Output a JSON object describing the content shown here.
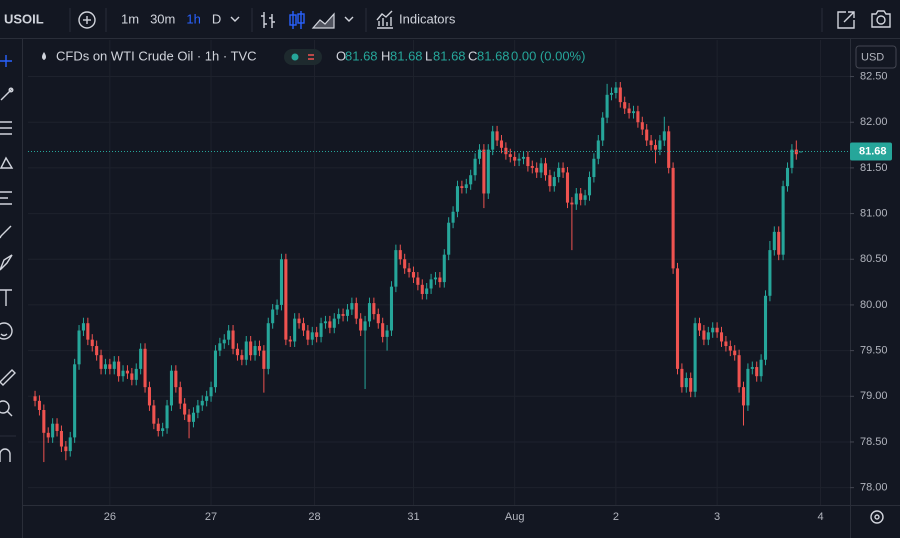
{
  "ui": {
    "symbol": "USOIL",
    "intervals": [
      "1m",
      "30m",
      "1h",
      "D"
    ],
    "active_interval": 2,
    "indicators": "Indicators",
    "legend_title": "CFDs on WTI Crude Oil · 1h · TVC",
    "ohlc": {
      "o_label": "O",
      "open": 81.68,
      "h_label": "H",
      "high": 81.68,
      "l_label": "L",
      "low": 81.68,
      "c_label": "C",
      "close": 81.68,
      "change": "0.00 (0.00%)"
    },
    "currency": "USD"
  },
  "chart_data": {
    "type": "candlestick",
    "up_color": "#26a69a",
    "down_color": "#ef5350",
    "grid": true,
    "last_price": 81.68,
    "xlim": [
      -1.6,
      185.2
    ],
    "xticks": [
      {
        "value": 17,
        "label": "26"
      },
      {
        "value": 40,
        "label": "27"
      },
      {
        "value": 63.5,
        "label": "28"
      },
      {
        "value": 86,
        "label": "31"
      },
      {
        "value": 109,
        "label": "Aug"
      },
      {
        "value": 132,
        "label": "2"
      },
      {
        "value": 155,
        "label": "3"
      },
      {
        "value": 178.5,
        "label": "4"
      }
    ],
    "ylim": [
      77.81,
      82.9
    ],
    "yticks": [
      {
        "value": 78,
        "label": "78.00"
      },
      {
        "value": 78.5,
        "label": "78.50"
      },
      {
        "value": 79,
        "label": "79.00"
      },
      {
        "value": 79.5,
        "label": "79.50"
      },
      {
        "value": 80,
        "label": "80.00"
      },
      {
        "value": 80.5,
        "label": "80.50"
      },
      {
        "value": 81,
        "label": "81.00"
      },
      {
        "value": 81.5,
        "label": "81.50"
      },
      {
        "value": 82,
        "label": "82.00"
      },
      {
        "value": 82.5,
        "label": "82.50"
      }
    ],
    "open": [
      79.0,
      78.95,
      78.85,
      78.6,
      78.55,
      78.7,
      78.62,
      78.45,
      78.4,
      78.55,
      79.35,
      79.72,
      79.8,
      79.62,
      79.55,
      79.45,
      79.3,
      79.35,
      79.3,
      79.38,
      79.22,
      79.28,
      79.25,
      79.18,
      79.3,
      79.52,
      79.1,
      78.9,
      78.7,
      78.62,
      78.65,
      78.9,
      79.28,
      79.1,
      78.92,
      78.8,
      78.72,
      78.82,
      78.9,
      78.95,
      79.0,
      79.1,
      79.5,
      79.58,
      79.62,
      79.72,
      79.52,
      79.45,
      79.4,
      79.6,
      79.45,
      79.55,
      79.5,
      79.3,
      79.8,
      79.95,
      80.0,
      80.5,
      79.62,
      79.6,
      79.85,
      79.8,
      79.72,
      79.62,
      79.7,
      79.65,
      79.8,
      79.82,
      79.75,
      79.85,
      79.9,
      79.88,
      79.95,
      80.02,
      79.85,
      79.72,
      79.82,
      80.02,
      79.9,
      79.8,
      79.65,
      79.72,
      80.2,
      80.6,
      80.5,
      80.4,
      80.36,
      80.3,
      80.22,
      80.12,
      80.18,
      80.28,
      80.3,
      80.25,
      80.55,
      80.9,
      81.02,
      81.3,
      81.28,
      81.32,
      81.42,
      81.6,
      81.7,
      81.22,
      81.7,
      81.9,
      81.8,
      81.72,
      81.65,
      81.62,
      81.58,
      81.6,
      81.62,
      81.52,
      81.5,
      81.45,
      81.55,
      81.42,
      81.3,
      81.4,
      81.5,
      81.45,
      81.12,
      81.1,
      81.22,
      81.15,
      81.2,
      81.4,
      81.6,
      81.8,
      82.05,
      82.3,
      82.32,
      82.38,
      82.22,
      82.15,
      82.1,
      82.12,
      82.0,
      81.92,
      81.8,
      81.75,
      81.7,
      81.8,
      81.9,
      81.5,
      80.4,
      79.3,
      79.1,
      79.2,
      79.05,
      79.8,
      79.72,
      79.62,
      79.7,
      79.75,
      79.7,
      79.6,
      79.55,
      79.5,
      79.45,
      79.1,
      78.9,
      79.3,
      79.32,
      79.22,
      79.4,
      80.1,
      80.6,
      80.8,
      80.55,
      81.3,
      81.5,
      81.7,
      81.68
    ],
    "high": [
      79.06,
      79.01,
      78.91,
      78.66,
      78.76,
      78.76,
      78.68,
      78.51,
      78.61,
      79.41,
      79.78,
      79.86,
      79.86,
      79.68,
      79.61,
      79.51,
      79.41,
      79.41,
      79.44,
      79.44,
      79.34,
      79.34,
      79.31,
      79.36,
      79.58,
      79.58,
      79.16,
      78.96,
      78.76,
      78.71,
      78.96,
      79.34,
      79.34,
      79.16,
      78.98,
      78.86,
      78.88,
      78.96,
      79.01,
      79.06,
      79.16,
      79.56,
      79.64,
      79.68,
      79.78,
      79.78,
      79.58,
      79.51,
      79.66,
      79.66,
      79.61,
      79.61,
      79.56,
      79.86,
      80.01,
      80.06,
      80.56,
      80.56,
      79.66,
      79.91,
      79.91,
      79.86,
      79.78,
      79.76,
      79.76,
      79.86,
      79.88,
      79.88,
      79.91,
      79.96,
      79.96,
      80.01,
      80.08,
      80.08,
      79.91,
      79.88,
      80.08,
      80.08,
      79.96,
      79.86,
      79.78,
      80.26,
      80.66,
      80.66,
      80.56,
      80.46,
      80.42,
      80.36,
      80.28,
      80.24,
      80.34,
      80.36,
      80.36,
      80.61,
      80.96,
      81.08,
      81.36,
      81.36,
      81.38,
      81.48,
      81.66,
      81.76,
      81.76,
      81.76,
      81.96,
      81.96,
      81.86,
      81.78,
      81.71,
      81.68,
      81.66,
      81.68,
      81.68,
      81.58,
      81.56,
      81.61,
      81.61,
      81.48,
      81.46,
      81.56,
      81.56,
      81.51,
      81.18,
      81.28,
      81.28,
      81.26,
      81.46,
      81.66,
      81.86,
      82.11,
      82.42,
      82.38,
      82.44,
      82.44,
      82.28,
      82.21,
      82.18,
      82.18,
      82.06,
      81.98,
      81.86,
      81.81,
      81.86,
      82.06,
      81.96,
      81.56,
      80.46,
      79.36,
      79.26,
      79.26,
      79.86,
      79.86,
      79.78,
      79.76,
      79.81,
      79.81,
      79.76,
      79.66,
      79.61,
      79.56,
      79.51,
      79.16,
      79.36,
      79.38,
      79.38,
      79.46,
      80.16,
      80.7,
      80.86,
      80.86,
      81.36,
      81.56,
      81.76,
      81.8,
      81.68
    ],
    "low": [
      78.89,
      78.79,
      78.28,
      78.49,
      78.49,
      78.56,
      78.39,
      78.3,
      78.34,
      78.49,
      79.29,
      79.66,
      79.56,
      79.49,
      79.39,
      79.24,
      79.24,
      79.24,
      79.24,
      79.16,
      79.16,
      79.19,
      79.12,
      79.12,
      79.24,
      79.04,
      78.84,
      78.64,
      78.56,
      78.56,
      78.59,
      78.84,
      79.04,
      78.86,
      78.74,
      78.54,
      78.66,
      78.76,
      78.84,
      78.89,
      78.94,
      79.04,
      79.44,
      79.52,
      79.56,
      79.46,
      79.39,
      79.34,
      79.34,
      79.39,
      79.39,
      79.44,
      79.04,
      79.24,
      79.74,
      79.89,
      79.94,
      79.56,
      79.54,
      79.54,
      79.74,
      79.66,
      79.56,
      79.56,
      79.59,
      79.59,
      79.74,
      79.69,
      79.69,
      79.79,
      79.82,
      79.82,
      79.89,
      79.79,
      79.66,
      79.08,
      79.76,
      79.84,
      79.74,
      79.59,
      79.5,
      79.66,
      80.14,
      80.44,
      80.34,
      80.3,
      80.24,
      80.16,
      80.06,
      80.06,
      80.12,
      80.22,
      80.19,
      80.19,
      80.49,
      80.84,
      80.96,
      81.22,
      81.22,
      81.26,
      81.36,
      81.54,
      81.06,
      81.16,
      81.64,
      81.74,
      81.66,
      81.59,
      81.56,
      81.52,
      81.52,
      81.54,
      81.46,
      81.44,
      81.39,
      81.39,
      81.36,
      81.24,
      81.24,
      81.34,
      81.39,
      81.06,
      80.6,
      81.04,
      81.09,
      81.09,
      81.14,
      81.34,
      81.54,
      81.74,
      81.99,
      82.24,
      82.26,
      82.16,
      82.09,
      82.04,
      82.04,
      81.94,
      81.86,
      81.74,
      81.69,
      81.55,
      81.64,
      81.74,
      81.44,
      80.34,
      79.24,
      79.04,
      79.04,
      78.99,
      78.99,
      79.66,
      79.56,
      79.56,
      79.64,
      79.64,
      79.54,
      79.49,
      79.44,
      79.39,
      79.04,
      78.68,
      78.84,
      79.24,
      79.16,
      79.16,
      79.34,
      80.04,
      80.54,
      80.49,
      80.49,
      81.24,
      81.44,
      81.59,
      81.68
    ],
    "close": [
      78.95,
      78.85,
      78.6,
      78.55,
      78.7,
      78.62,
      78.45,
      78.4,
      78.55,
      79.35,
      79.72,
      79.8,
      79.62,
      79.55,
      79.45,
      79.3,
      79.35,
      79.3,
      79.38,
      79.22,
      79.28,
      79.25,
      79.18,
      79.3,
      79.52,
      79.1,
      78.9,
      78.7,
      78.62,
      78.65,
      78.9,
      79.28,
      79.1,
      78.92,
      78.8,
      78.72,
      78.82,
      78.9,
      78.95,
      79.0,
      79.1,
      79.5,
      79.58,
      79.62,
      79.72,
      79.52,
      79.45,
      79.4,
      79.6,
      79.45,
      79.55,
      79.5,
      79.3,
      79.8,
      79.95,
      80.0,
      80.5,
      79.62,
      79.6,
      79.85,
      79.8,
      79.72,
      79.62,
      79.7,
      79.65,
      79.8,
      79.82,
      79.75,
      79.85,
      79.9,
      79.88,
      79.95,
      80.02,
      79.85,
      79.72,
      79.82,
      80.02,
      79.9,
      79.8,
      79.65,
      79.72,
      80.2,
      80.6,
      80.5,
      80.4,
      80.36,
      80.3,
      80.22,
      80.12,
      80.18,
      80.28,
      80.3,
      80.25,
      80.55,
      80.9,
      81.02,
      81.3,
      81.28,
      81.32,
      81.42,
      81.6,
      81.7,
      81.22,
      81.7,
      81.9,
      81.8,
      81.72,
      81.65,
      81.62,
      81.58,
      81.6,
      81.62,
      81.52,
      81.5,
      81.45,
      81.55,
      81.42,
      81.3,
      81.4,
      81.5,
      81.45,
      81.12,
      81.1,
      81.22,
      81.15,
      81.2,
      81.4,
      81.6,
      81.8,
      82.05,
      82.3,
      82.32,
      82.38,
      82.22,
      82.15,
      82.1,
      82.12,
      82.0,
      81.92,
      81.8,
      81.75,
      81.7,
      81.8,
      81.9,
      81.5,
      80.4,
      79.3,
      79.1,
      79.2,
      79.05,
      79.8,
      79.72,
      79.62,
      79.7,
      79.75,
      79.7,
      79.6,
      79.55,
      79.5,
      79.45,
      79.1,
      78.9,
      79.3,
      79.32,
      79.22,
      79.4,
      80.1,
      80.6,
      80.8,
      80.55,
      81.3,
      81.5,
      81.7,
      81.65,
      81.68
    ]
  }
}
